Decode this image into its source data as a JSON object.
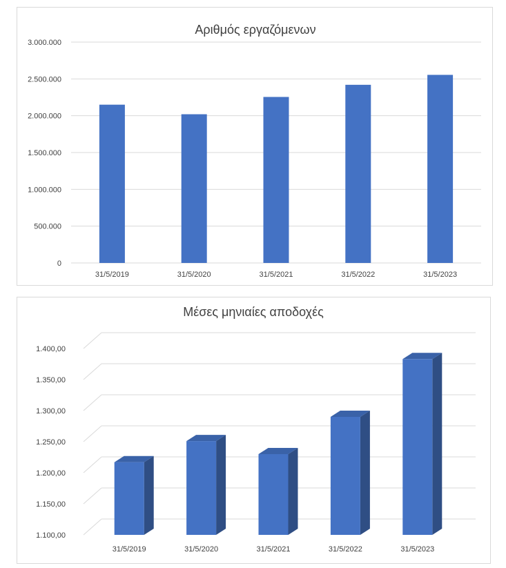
{
  "chart_data": [
    {
      "type": "bar",
      "title": "Αριθμός εργαζόμενων",
      "categories": [
        "31/5/2019",
        "31/5/2020",
        "31/5/2021",
        "31/5/2022",
        "31/5/2023"
      ],
      "values": [
        2150000,
        2020000,
        2255000,
        2420000,
        2555000
      ],
      "ylim": [
        0,
        3000000
      ],
      "yticks": [
        0,
        500000,
        1000000,
        1500000,
        2000000,
        2500000,
        3000000
      ],
      "ytick_labels": [
        "0",
        "500.000",
        "1.000.000",
        "1.500.000",
        "2.000.000",
        "2.500.000",
        "3.000.000"
      ],
      "grid": true,
      "legend": "none",
      "bar_color": "#4472c4"
    },
    {
      "type": "bar",
      "style": "3d",
      "title": "Μέσες μηνιαίες αποδοχές",
      "categories": [
        "31/5/2019",
        "31/5/2020",
        "31/5/2021",
        "31/5/2022",
        "31/5/2023"
      ],
      "values": [
        1217,
        1251,
        1230,
        1290,
        1383
      ],
      "ylim": [
        1100,
        1400
      ],
      "yticks": [
        1100,
        1150,
        1200,
        1250,
        1300,
        1350,
        1400
      ],
      "ytick_labels": [
        "1.100,00",
        "1.150,00",
        "1.200,00",
        "1.250,00",
        "1.300,00",
        "1.350,00",
        "1.400,00"
      ],
      "grid": true,
      "legend": "none",
      "bar_color": "#4472c4",
      "bar_side_color": "#2f4e84",
      "bar_top_color": "#3a62a8"
    }
  ]
}
